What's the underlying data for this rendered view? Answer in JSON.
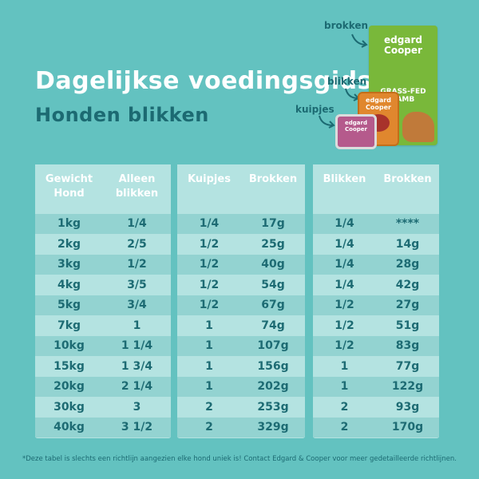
{
  "title": "Dagelijkse voedingsgids",
  "subtitle": "Honden blikken",
  "products": {
    "label_brokken": "brokken",
    "label_blikken": "blikken",
    "label_kuipjes": "kuipjes",
    "bag_logo": "edgard Cooper",
    "bag_text": "GRASS-FED LAMB",
    "can_logo": "edgard Cooper",
    "tray_logo": "edgard Cooper"
  },
  "table1": {
    "headers": [
      "Gewicht Hond",
      "Alleen blikken"
    ],
    "rows": [
      [
        "1kg",
        "1/4"
      ],
      [
        "2kg",
        "2/5"
      ],
      [
        "3kg",
        "1/2"
      ],
      [
        "4kg",
        "3/5"
      ],
      [
        "5kg",
        "3/4"
      ],
      [
        "7kg",
        "1"
      ],
      [
        "10kg",
        "1 1/4"
      ],
      [
        "15kg",
        "1 3/4"
      ],
      [
        "20kg",
        "2 1/4"
      ],
      [
        "30kg",
        "3"
      ],
      [
        "40kg",
        "3 1/2"
      ]
    ]
  },
  "table2": {
    "headers": [
      "Kuipjes",
      "Brokken"
    ],
    "rows": [
      [
        "1/4",
        "17g"
      ],
      [
        "1/2",
        "25g"
      ],
      [
        "1/2",
        "40g"
      ],
      [
        "1/2",
        "54g"
      ],
      [
        "1/2",
        "67g"
      ],
      [
        "1",
        "74g"
      ],
      [
        "1",
        "107g"
      ],
      [
        "1",
        "156g"
      ],
      [
        "1",
        "202g"
      ],
      [
        "2",
        "253g"
      ],
      [
        "2",
        "329g"
      ]
    ]
  },
  "table3": {
    "headers": [
      "Blikken",
      "Brokken"
    ],
    "rows": [
      [
        "1/4",
        "****"
      ],
      [
        "1/4",
        "14g"
      ],
      [
        "1/4",
        "28g"
      ],
      [
        "1/4",
        "42g"
      ],
      [
        "1/2",
        "27g"
      ],
      [
        "1/2",
        "51g"
      ],
      [
        "1/2",
        "83g"
      ],
      [
        "1",
        "77g"
      ],
      [
        "1",
        "122g"
      ],
      [
        "2",
        "93g"
      ],
      [
        "2",
        "170g"
      ]
    ]
  },
  "footnote": "*Deze tabel is slechts een richtlijn aangezien elke hond uniek is! Contact Edgard & Cooper voor meer gedetailleerde richtlijnen."
}
